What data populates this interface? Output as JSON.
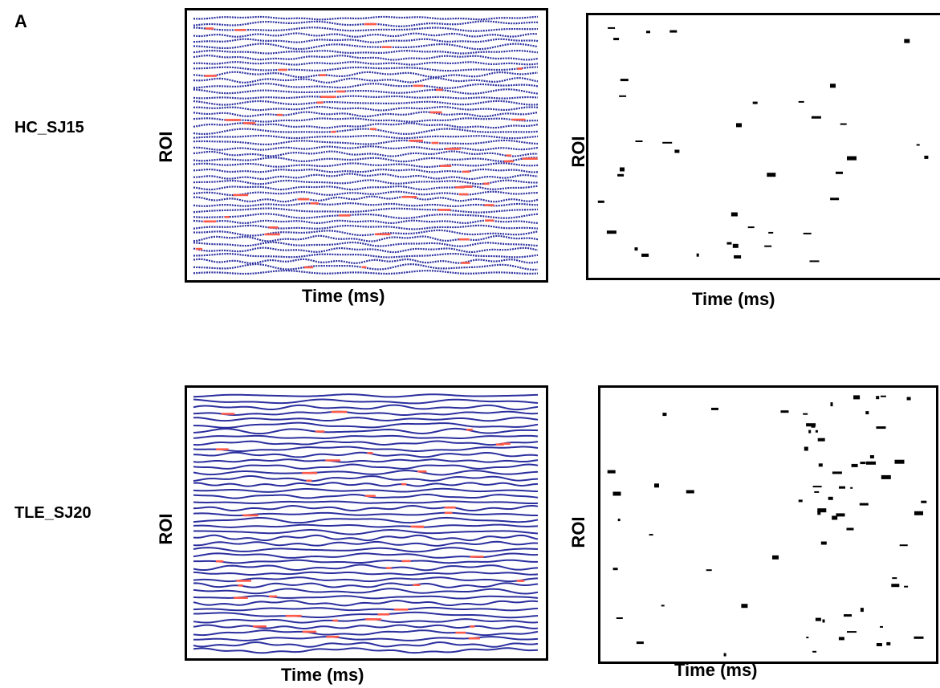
{
  "figure": {
    "panel_letter": "A",
    "rows": [
      {
        "label": "HC_SJ15",
        "left_plot": {
          "ylabel": "ROI",
          "xlabel": "Time (ms)"
        },
        "right_plot": {
          "ylabel": "ROI",
          "xlabel": "Time (ms)"
        }
      },
      {
        "label": "TLE_SJ20",
        "left_plot": {
          "ylabel": "ROI",
          "xlabel": "Time (ms)"
        },
        "right_plot": {
          "ylabel": "ROI",
          "xlabel": "Time (ms)"
        }
      }
    ]
  },
  "colors": {
    "trace": "#2b2f9e",
    "highlight": "#ff5a4a",
    "event": "#000000",
    "frame": "#000000"
  },
  "chart_data": [
    {
      "type": "line",
      "panel": "HC_SJ15 traces",
      "xlabel": "Time (ms)",
      "ylabel": "ROI",
      "series_count": 46,
      "grid": false
    },
    {
      "type": "scatter",
      "panel": "HC_SJ15 events",
      "xlabel": "Time (ms)",
      "ylabel": "ROI",
      "grid": false
    },
    {
      "type": "line",
      "panel": "TLE_SJ20 traces",
      "xlabel": "Time (ms)",
      "ylabel": "ROI",
      "series_count": 44,
      "grid": false
    },
    {
      "type": "scatter",
      "panel": "TLE_SJ20 events",
      "xlabel": "Time (ms)",
      "ylabel": "ROI",
      "grid": false
    }
  ]
}
